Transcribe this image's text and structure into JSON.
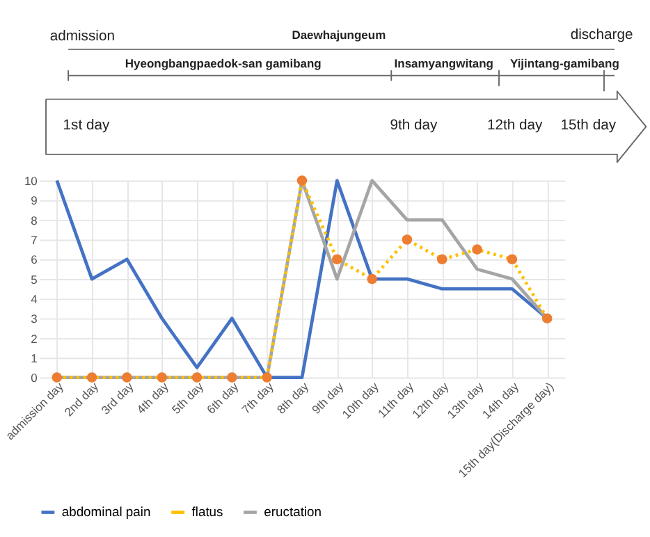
{
  "chart_data": {
    "type": "line",
    "annotations": [
      "admission",
      "Daewhajungeum",
      "discharge",
      "Hyeongbangpaedok-san  gamibang",
      "Insamyangwitang",
      "Yijintang-gamibang",
      "1st day",
      "9th day",
      "12th day",
      "15th day"
    ],
    "categories": [
      "admission day",
      "2nd day",
      "3rd day",
      "4th day",
      "5th day",
      "6th day",
      "7th day",
      "8th day",
      "9th day",
      "10th day",
      "11th day",
      "12th day",
      "13th day",
      "14th day",
      "15th day(Discharge day)"
    ],
    "series": [
      {
        "name": "abdominal pain",
        "color": "#4472c4",
        "line_style": "solid",
        "marker": "none",
        "values": [
          10,
          5,
          6,
          3,
          0.5,
          3,
          0,
          0,
          10,
          5,
          5,
          4.5,
          4.5,
          4.5,
          3
        ]
      },
      {
        "name": "flatus",
        "color": "#ffc000",
        "line_style": "dotted",
        "marker": "circle",
        "colors": [
          "#ed7d31",
          "#ed7d31",
          "#ed7d31",
          "#ed7d31",
          "#ed7d31",
          "#ed7d31",
          "#ed7d31",
          "#ed7d31",
          "#ed7d31",
          "#ed7d31",
          "#ed7d31",
          "#ed7d31",
          "#ed7d31",
          "#ed7d31",
          "#ed7d31"
        ],
        "values": [
          0,
          0,
          0,
          0,
          0,
          0,
          0,
          10,
          6,
          5,
          7,
          6,
          6.5,
          6,
          3
        ]
      },
      {
        "name": "eructation",
        "color": "#a5a5a5",
        "line_style": "solid",
        "marker": "none",
        "values": [
          0,
          0,
          0,
          0,
          0,
          0,
          0,
          10,
          5,
          10,
          8,
          8,
          5.5,
          5,
          3
        ]
      }
    ],
    "ylim": [
      0,
      10
    ],
    "yticks": [
      0,
      1,
      2,
      3,
      4,
      5,
      6,
      7,
      8,
      9,
      10
    ],
    "grid": true,
    "legend": "bottom"
  }
}
